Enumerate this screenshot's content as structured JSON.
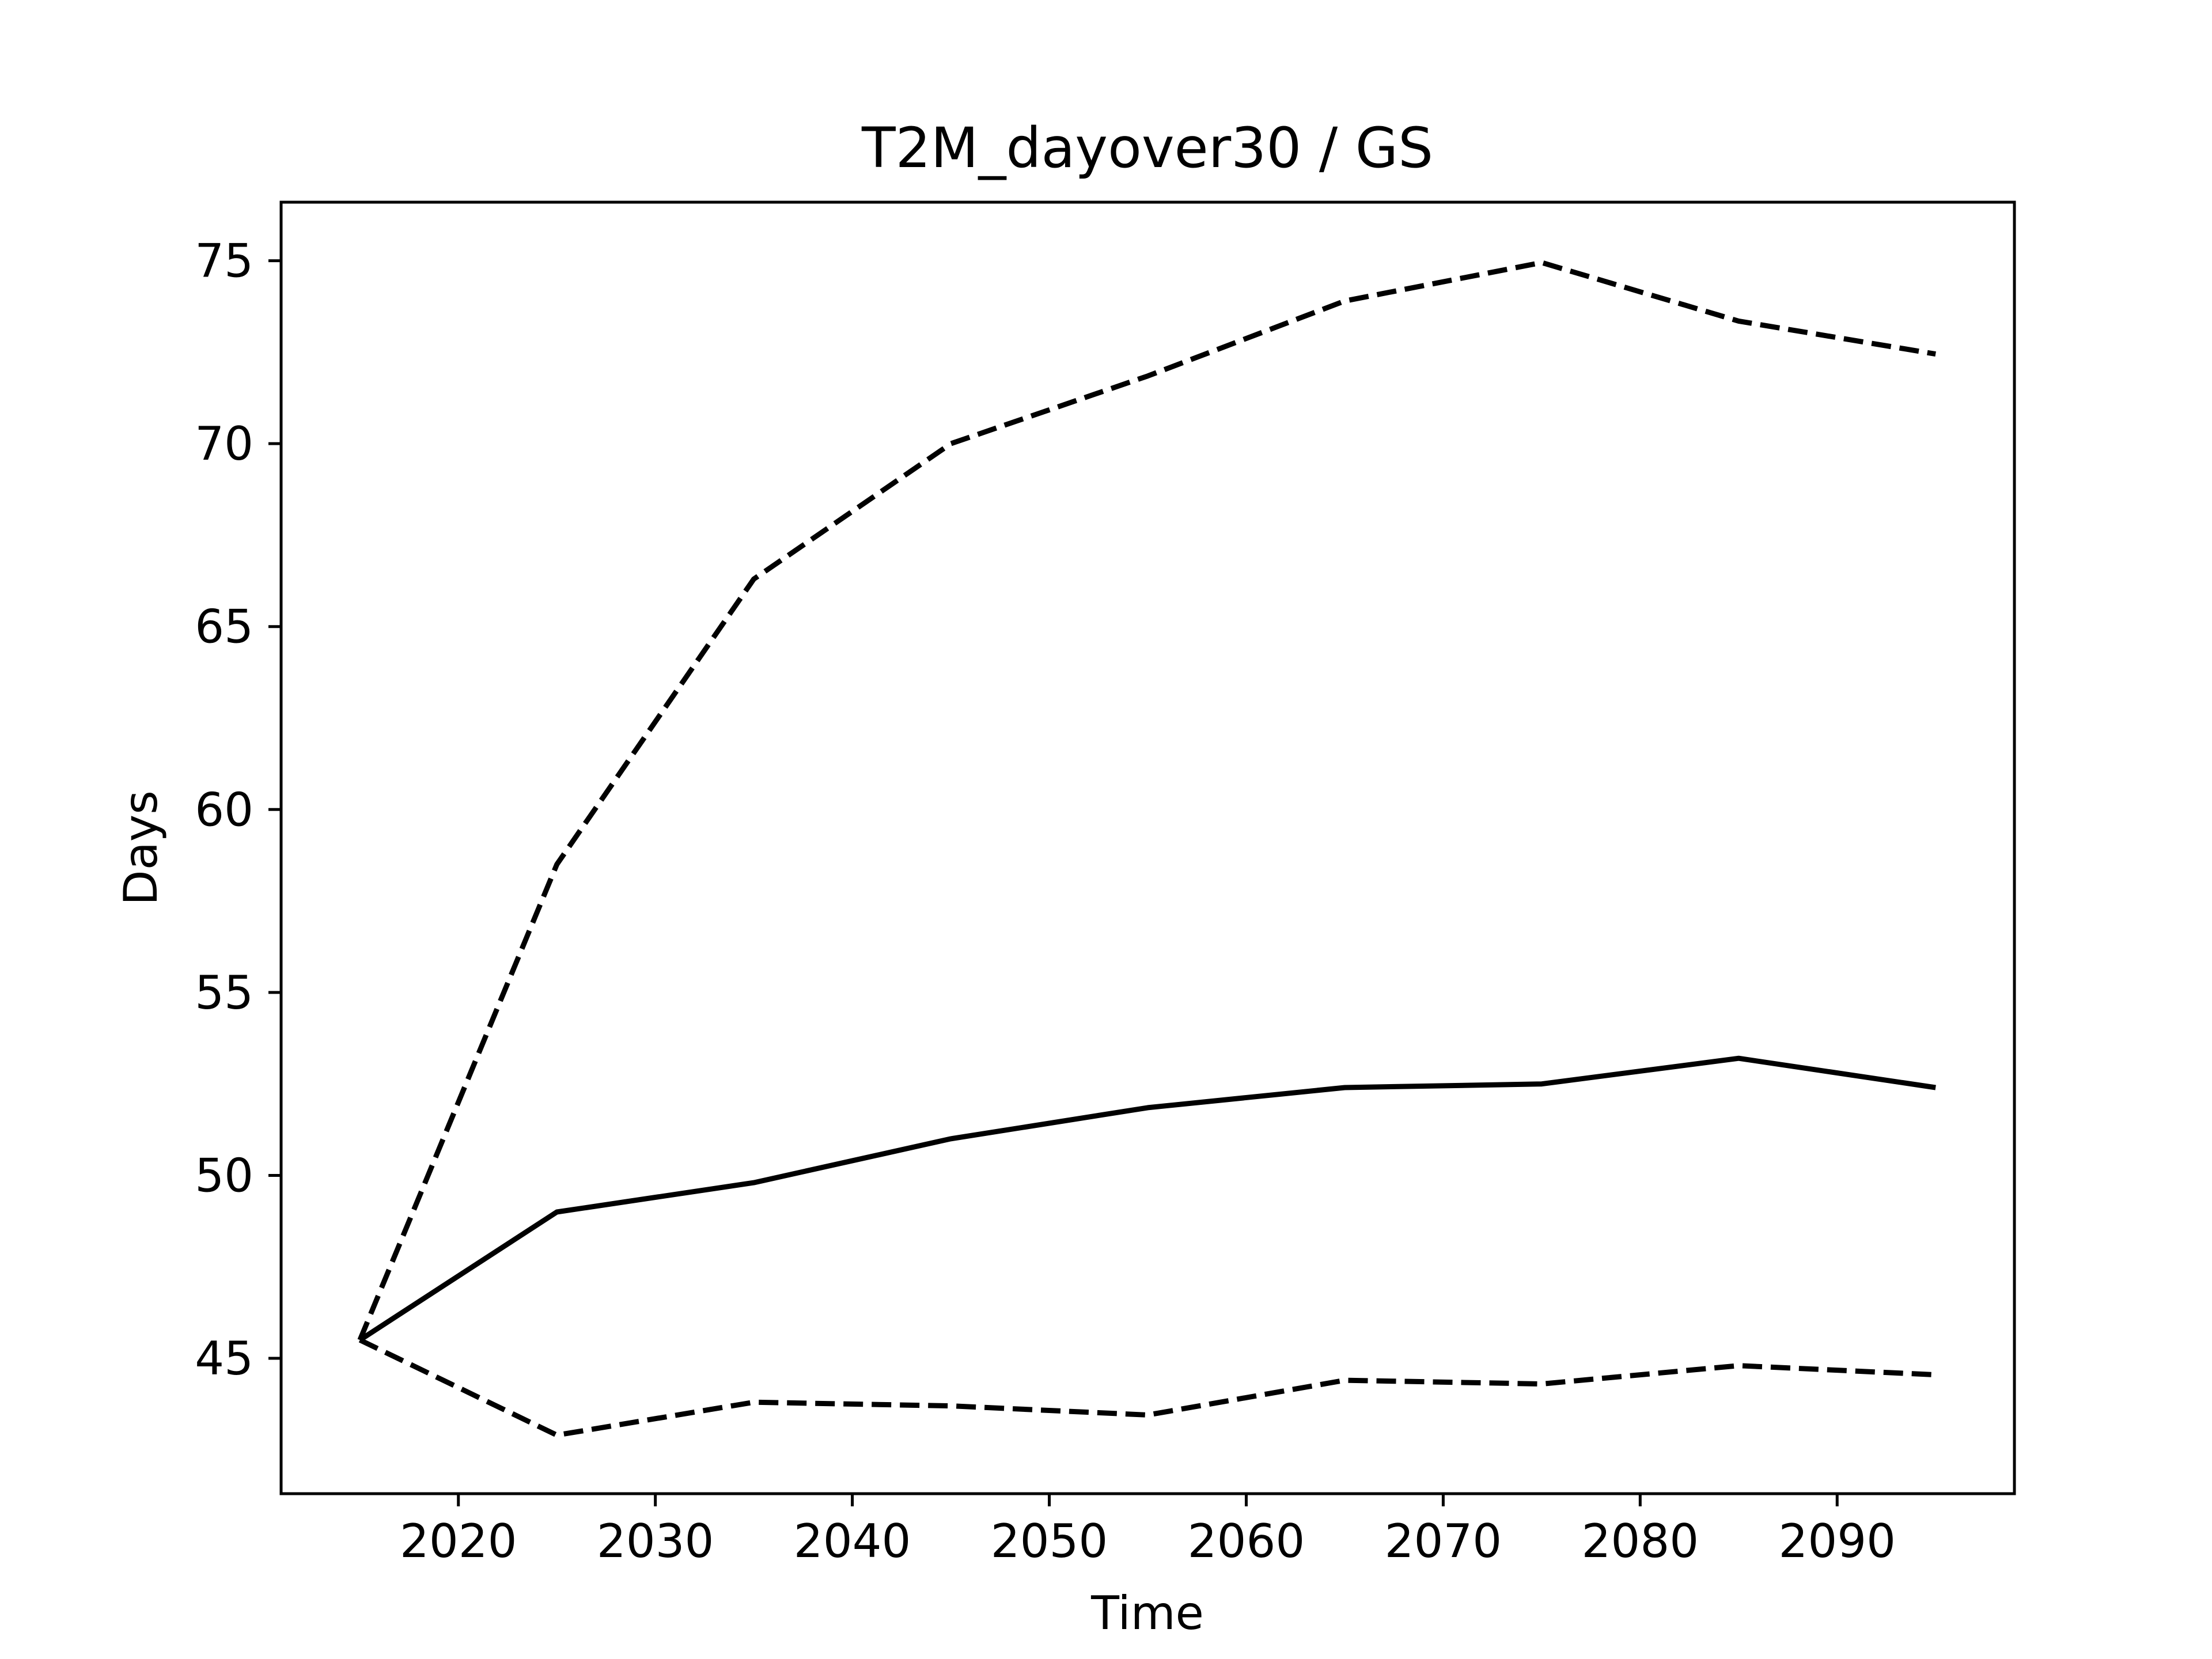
{
  "chart_data": {
    "type": "line",
    "title": "T2M_dayover30 / GS",
    "xlabel": "Time",
    "ylabel": "Days",
    "xlim": [
      2011,
      2099
    ],
    "ylim": [
      41.3,
      76.6
    ],
    "xticks": [
      2020,
      2030,
      2040,
      2050,
      2060,
      2070,
      2080,
      2090
    ],
    "yticks": [
      45,
      50,
      55,
      60,
      65,
      70,
      75
    ],
    "grid": false,
    "legend": false,
    "x": [
      2015,
      2025,
      2035,
      2045,
      2055,
      2065,
      2075,
      2085,
      2095
    ],
    "series": [
      {
        "style": "solid",
        "color": "#000000",
        "values": [
          45.5,
          49.0,
          49.8,
          51.0,
          51.85,
          52.4,
          52.5,
          53.2,
          52.4
        ]
      },
      {
        "style": "dashed",
        "color": "#000000",
        "values": [
          45.5,
          58.5,
          66.3,
          70.0,
          71.85,
          73.9,
          74.95,
          73.35,
          72.45
        ]
      },
      {
        "style": "dashed",
        "color": "#000000",
        "values": [
          45.5,
          42.9,
          43.8,
          43.7,
          43.45,
          44.4,
          44.3,
          44.8,
          44.55
        ]
      }
    ]
  }
}
